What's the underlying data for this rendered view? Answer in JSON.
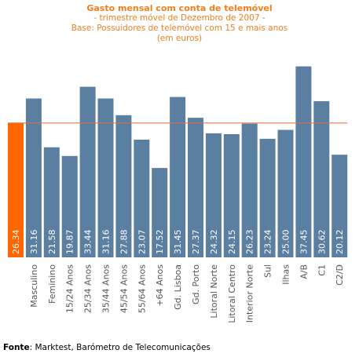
{
  "title": "Gasto mensal com conta de telemóvel",
  "subtitle_lines": [
    "- trimestre móvel de Dezembro de 2007 -",
    "Base: Possuidores de telemóvel com 15 e mais anos",
    "(em euros)"
  ],
  "source": {
    "label": "Fonte",
    "text": ": Marktest, Barómetro de Telecomunicações"
  },
  "colors": {
    "highlight_bar": "#ff6600",
    "bar": "#5b7fa0",
    "reference_line": "#e8703a",
    "title": "#f07f1e",
    "value_label": "#ffffff",
    "axis_label": "#555555"
  },
  "chart_data": {
    "type": "bar",
    "categories": [
      "",
      "Masculino",
      "Feminino",
      "15/24 Anos",
      "25/34 Anos",
      "35/44 Anos",
      "45/54 Anos",
      "55/64 Anos",
      "+64 Anos",
      "Gd. Lisboa",
      "Gd. Porto",
      "Litoral Norte",
      "Litoral Centro",
      "Interior Norte",
      "Sul",
      "Ilhas",
      "A/B",
      "C1",
      "C2/D"
    ],
    "values": [
      26.34,
      31.16,
      21.58,
      19.87,
      33.44,
      31.16,
      27.88,
      23.07,
      17.52,
      31.45,
      27.37,
      24.32,
      24.15,
      26.23,
      23.24,
      25.0,
      37.45,
      30.62,
      20.12
    ],
    "value_labels": [
      "26.34",
      "31.16",
      "21.58",
      "19.87",
      "33.44",
      "31.16",
      "27.88",
      "23.07",
      "17.52",
      "31.45",
      "27.37",
      "24.32",
      "24.15",
      "26.23",
      "23.24",
      "25.00",
      "37.45",
      "30.62",
      "20.12"
    ],
    "highlight_index": 0,
    "reference_line": 26.34,
    "ylim": [
      0,
      40
    ],
    "grid": false,
    "legend": "none"
  }
}
